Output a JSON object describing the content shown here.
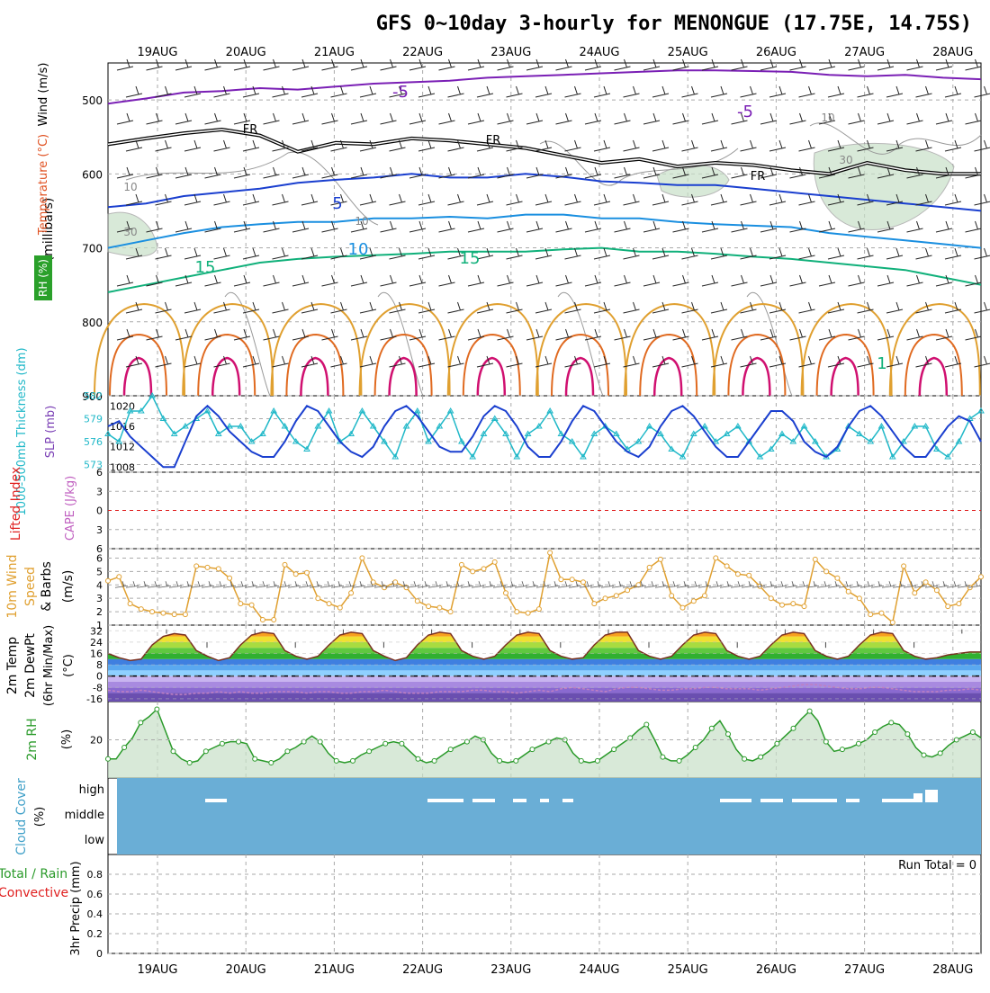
{
  "title": "GFS 0~10day 3-hourly for MENONGUE (17.75E, 14.75S)",
  "dates": [
    "19AUG",
    "20AUG",
    "21AUG",
    "22AUG",
    "23AUG",
    "24AUG",
    "25AUG",
    "26AUG",
    "27AUG",
    "28AUG"
  ],
  "panel_labels": {
    "upper": {
      "rh": "RH (%)",
      "temperature": "Temperature (°C)",
      "wind": "Wind (m/s)",
      "units": "(millibars)"
    },
    "slp": {
      "thickness": "1000-500mb Thickness (dm)",
      "slp": "SLP (mb)"
    },
    "stability": {
      "li": "Lifted Index",
      "cape": "CAPE (J/kg)"
    },
    "wind10": {
      "a": "10m Wind",
      "b": "Speed",
      "c": "& Barbs",
      "units": "(m/s)"
    },
    "temp2m": {
      "a": "2m Temp",
      "b": "2m DewPt",
      "c": "(6hr Min/Max)",
      "units": "(°C)"
    },
    "rh2m": {
      "a": "2m RH",
      "units": "(%)"
    },
    "cloud": {
      "a": "Cloud Cover",
      "units": "(%)"
    },
    "precip": {
      "a": "Total / Rain",
      "b": "Convective",
      "c": "3hr Precip (mm)",
      "run_total": "Run Total = 0"
    }
  },
  "colors": {
    "purple": "#7a1fb5",
    "blue": "#1a3fcf",
    "lightblue": "#1a8fe0",
    "teal": "#10b07a",
    "orange": "#e0a030",
    "darkorange": "#e06a20",
    "magenta": "#d01070",
    "cyan": "#20b8c8",
    "rhfill": "#c8e0c8",
    "cloud": "#6aaed6",
    "green": "#2a9a2a",
    "red": "#e02020"
  },
  "chart_data": [
    {
      "type": "line",
      "name": "upper-air",
      "yaxis": {
        "label": "millibars",
        "ticks": [
          500,
          600,
          700,
          800,
          900
        ],
        "reversed": true,
        "range": [
          450,
          900
        ]
      },
      "contour_labels": [
        {
          "text": "-5",
          "level": -5
        },
        {
          "text": "-5",
          "level": -5
        },
        {
          "text": "FR",
          "level": 0
        },
        {
          "text": "FR",
          "level": 0
        },
        {
          "text": "FR",
          "level": 0
        },
        {
          "text": "5",
          "level": 5
        },
        {
          "text": "10",
          "level": 10
        },
        {
          "text": "15",
          "level": 15
        },
        {
          "text": "15",
          "level": 15
        },
        {
          "text": "10",
          "level": 10,
          "field": "rh"
        },
        {
          "text": "30",
          "level": 30,
          "field": "rh"
        },
        {
          "text": "10",
          "level": 10,
          "field": "rh"
        },
        {
          "text": "10",
          "level": 10,
          "field": "rh"
        },
        {
          "text": "30",
          "level": 30,
          "field": "rh"
        },
        {
          "text": "1",
          "level": 1
        }
      ],
      "series": [
        {
          "name": "-5",
          "mb": [
            505,
            498,
            490,
            488,
            484,
            486,
            482,
            478,
            476,
            474,
            470,
            468,
            466,
            464,
            462,
            460,
            460,
            461,
            462,
            466,
            468,
            466,
            470,
            472
          ]
        },
        {
          "name": "FR",
          "mb": [
            560,
            552,
            545,
            540,
            548,
            570,
            558,
            560,
            552,
            555,
            560,
            565,
            575,
            585,
            580,
            590,
            585,
            588,
            595,
            600,
            585,
            595,
            600,
            600
          ]
        },
        {
          "name": "5",
          "mb": [
            645,
            640,
            630,
            625,
            620,
            612,
            608,
            605,
            600,
            605,
            605,
            600,
            604,
            610,
            612,
            615,
            615,
            620,
            625,
            630,
            635,
            640,
            645,
            650
          ]
        },
        {
          "name": "10",
          "mb": [
            700,
            690,
            680,
            672,
            668,
            665,
            665,
            660,
            660,
            658,
            660,
            655,
            655,
            660,
            660,
            665,
            668,
            670,
            672,
            680,
            685,
            690,
            695,
            700
          ]
        },
        {
          "name": "15",
          "mb": [
            760,
            750,
            740,
            730,
            720,
            715,
            712,
            710,
            708,
            705,
            705,
            705,
            702,
            700,
            705,
            705,
            708,
            712,
            715,
            720,
            725,
            730,
            740,
            750
          ]
        }
      ]
    },
    {
      "type": "line",
      "name": "thickness-slp",
      "left_axis": {
        "label": "1000-500mb Thickness (dm)",
        "ticks": [
          573,
          576,
          579,
          582
        ],
        "range": [
          572,
          582
        ]
      },
      "right_axis": {
        "label": "SLP (mb)",
        "ticks": [
          1008,
          1012,
          1016,
          1020
        ],
        "range": [
          1007,
          1022
        ]
      },
      "series": [
        {
          "name": "Thickness",
          "values": [
            577,
            576,
            580,
            580,
            582,
            579,
            577,
            578,
            579,
            580,
            577,
            578,
            578,
            576,
            577,
            580,
            578,
            576,
            575,
            578,
            580,
            576,
            577,
            580,
            578,
            576,
            574,
            578,
            580,
            576,
            578,
            580,
            576,
            574,
            577,
            579,
            577,
            574,
            577,
            578,
            580,
            577,
            576,
            574,
            577,
            578,
            577,
            575,
            576,
            578,
            577,
            575,
            574,
            577,
            578,
            576,
            577,
            578,
            576,
            574,
            575,
            577,
            576,
            578,
            576,
            574,
            575,
            578,
            577,
            576,
            578,
            574,
            576,
            578,
            578,
            575,
            574,
            576,
            579,
            580
          ]
        },
        {
          "name": "SLP",
          "values": [
            1016,
            1017,
            1014,
            1012,
            1010,
            1008,
            1008,
            1013,
            1018,
            1020,
            1018,
            1015,
            1013,
            1011,
            1010,
            1010,
            1013,
            1017,
            1020,
            1019,
            1016,
            1013,
            1011,
            1010,
            1012,
            1016,
            1019,
            1020,
            1018,
            1015,
            1012,
            1011,
            1011,
            1014,
            1018,
            1020,
            1019,
            1016,
            1012,
            1010,
            1010,
            1013,
            1017,
            1020,
            1019,
            1016,
            1013,
            1011,
            1010,
            1012,
            1016,
            1019,
            1020,
            1018,
            1015,
            1012,
            1010,
            1010,
            1013,
            1016,
            1019,
            1019,
            1017,
            1013,
            1011,
            1010,
            1012,
            1016,
            1019,
            1020,
            1018,
            1015,
            1012,
            1010,
            1010,
            1013,
            1016,
            1018,
            1017,
            1013
          ]
        }
      ]
    },
    {
      "type": "line",
      "name": "lifted-index-cape",
      "yaxis": {
        "label": "Lifted Index",
        "ticks": [
          -6,
          -3,
          0,
          3,
          6
        ],
        "tick_labels": [
          "6",
          "3",
          "0",
          "3",
          "6"
        ],
        "range": [
          -6,
          6
        ]
      },
      "series": [
        {
          "name": "Lifted Index",
          "values": []
        }
      ]
    },
    {
      "type": "line",
      "name": "10m-wind",
      "yaxis": {
        "label": "(m/s)",
        "ticks": [
          1,
          2,
          3,
          4,
          5,
          6
        ],
        "range": [
          1,
          6.7
        ]
      },
      "series": [
        {
          "name": "Speed",
          "values": [
            4.3,
            4.6,
            2.6,
            2.2,
            2.0,
            1.9,
            1.8,
            1.8,
            5.4,
            5.3,
            5.2,
            4.5,
            2.6,
            2.5,
            1.4,
            1.4,
            5.5,
            4.8,
            4.9,
            3.0,
            2.6,
            2.3,
            3.4,
            6.0,
            4.2,
            3.8,
            4.2,
            3.8,
            2.8,
            2.4,
            2.3,
            2.0,
            5.5,
            5.0,
            5.2,
            5.7,
            3.4,
            2.0,
            1.9,
            2.2,
            6.4,
            4.4,
            4.4,
            4.2,
            2.6,
            3.0,
            3.2,
            3.6,
            4.0,
            5.3,
            5.9,
            3.2,
            2.3,
            2.8,
            3.2,
            6.0,
            5.4,
            4.8,
            4.7,
            3.9,
            3.0,
            2.5,
            2.6,
            2.4,
            5.9,
            5.0,
            4.5,
            3.5,
            3.0,
            1.8,
            1.9,
            1.2,
            5.4,
            3.4,
            4.2,
            3.6,
            2.4,
            2.6,
            3.8,
            4.6
          ]
        }
      ]
    },
    {
      "type": "area",
      "name": "2m-temperature",
      "yaxis": {
        "label": "(°C)",
        "ticks": [
          -16,
          -8,
          0,
          8,
          16,
          24,
          32
        ],
        "range": [
          -18,
          36
        ]
      },
      "series": [
        {
          "name": "2m Temp",
          "values": [
            16,
            13,
            11,
            12,
            22,
            28,
            30,
            29,
            18,
            14,
            11,
            13,
            22,
            29,
            31,
            30,
            18,
            14,
            12,
            14,
            22,
            29,
            31,
            30,
            18,
            14,
            11,
            13,
            22,
            29,
            31,
            30,
            18,
            14,
            12,
            14,
            22,
            29,
            31,
            30,
            18,
            14,
            12,
            13,
            22,
            29,
            31,
            31,
            18,
            14,
            12,
            14,
            22,
            29,
            31,
            30,
            18,
            14,
            12,
            14,
            22,
            29,
            31,
            30,
            18,
            14,
            12,
            14,
            22,
            29,
            31,
            30,
            18,
            14,
            12,
            13,
            15,
            16,
            17,
            17
          ]
        },
        {
          "name": "2m DewPt",
          "values": [
            -10,
            -11,
            -11,
            -10,
            -11,
            -12,
            -13,
            -13,
            -12,
            -12,
            -11,
            -12,
            -11,
            -12,
            -12,
            -11,
            -11,
            -11,
            -12,
            -11,
            -11,
            -12,
            -12,
            -11,
            -11,
            -10,
            -11,
            -12,
            -12,
            -12,
            -11,
            -11,
            -11,
            -10,
            -10,
            -11,
            -11,
            -12,
            -11,
            -10,
            -11,
            -9,
            -8,
            -9,
            -10,
            -11,
            -9,
            -8,
            -8,
            -9,
            -10,
            -10,
            -9,
            -9,
            -8,
            -8,
            -9,
            -9,
            -9,
            -10,
            -9,
            -8,
            -7,
            -6,
            -6,
            -7,
            -8,
            -9,
            -9,
            -8,
            -8,
            -9,
            -10,
            -11,
            -11,
            -11,
            -10,
            -10,
            -9,
            -10
          ]
        }
      ]
    },
    {
      "type": "area",
      "name": "2m-rh",
      "yaxis": {
        "label": "(%)",
        "ticks": [
          20
        ],
        "range": [
          0,
          40
        ]
      },
      "series": [
        {
          "name": "2m RH",
          "values": [
            10,
            10,
            16,
            21,
            29,
            32,
            36,
            25,
            14,
            10,
            8,
            9,
            14,
            16,
            18,
            19,
            19,
            18,
            10,
            9,
            8,
            10,
            14,
            16,
            19,
            22,
            19,
            13,
            9,
            8,
            9,
            12,
            14,
            16,
            18,
            19,
            18,
            14,
            10,
            8,
            9,
            12,
            15,
            17,
            19,
            22,
            20,
            13,
            9,
            8,
            9,
            12,
            15,
            17,
            19,
            21,
            20,
            13,
            9,
            8,
            9,
            12,
            15,
            18,
            21,
            25,
            28,
            20,
            11,
            9,
            9,
            12,
            16,
            20,
            26,
            30,
            23,
            15,
            10,
            9,
            11,
            14,
            18,
            22,
            26,
            31,
            35,
            30,
            19,
            14,
            15,
            16,
            18,
            20,
            24,
            27,
            29,
            28,
            23,
            16,
            12,
            11,
            13,
            17,
            20,
            22,
            24,
            21
          ]
        }
      ]
    },
    {
      "type": "bar",
      "name": "cloud-cover",
      "yaxis": {
        "label": "(%)",
        "tick_labels": [
          "high",
          "middle",
          "low"
        ]
      },
      "series": [
        {
          "name": "High Cloud",
          "values": []
        }
      ]
    },
    {
      "type": "bar",
      "name": "3hr-precip",
      "yaxis": {
        "label": "3hr Precip (mm)",
        "ticks": [
          0,
          0.2,
          0.4,
          0.6,
          0.8
        ],
        "range": [
          0,
          1
        ]
      },
      "series": [
        {
          "name": "Total / Rain",
          "values": []
        },
        {
          "name": "Convective",
          "values": []
        }
      ]
    }
  ]
}
